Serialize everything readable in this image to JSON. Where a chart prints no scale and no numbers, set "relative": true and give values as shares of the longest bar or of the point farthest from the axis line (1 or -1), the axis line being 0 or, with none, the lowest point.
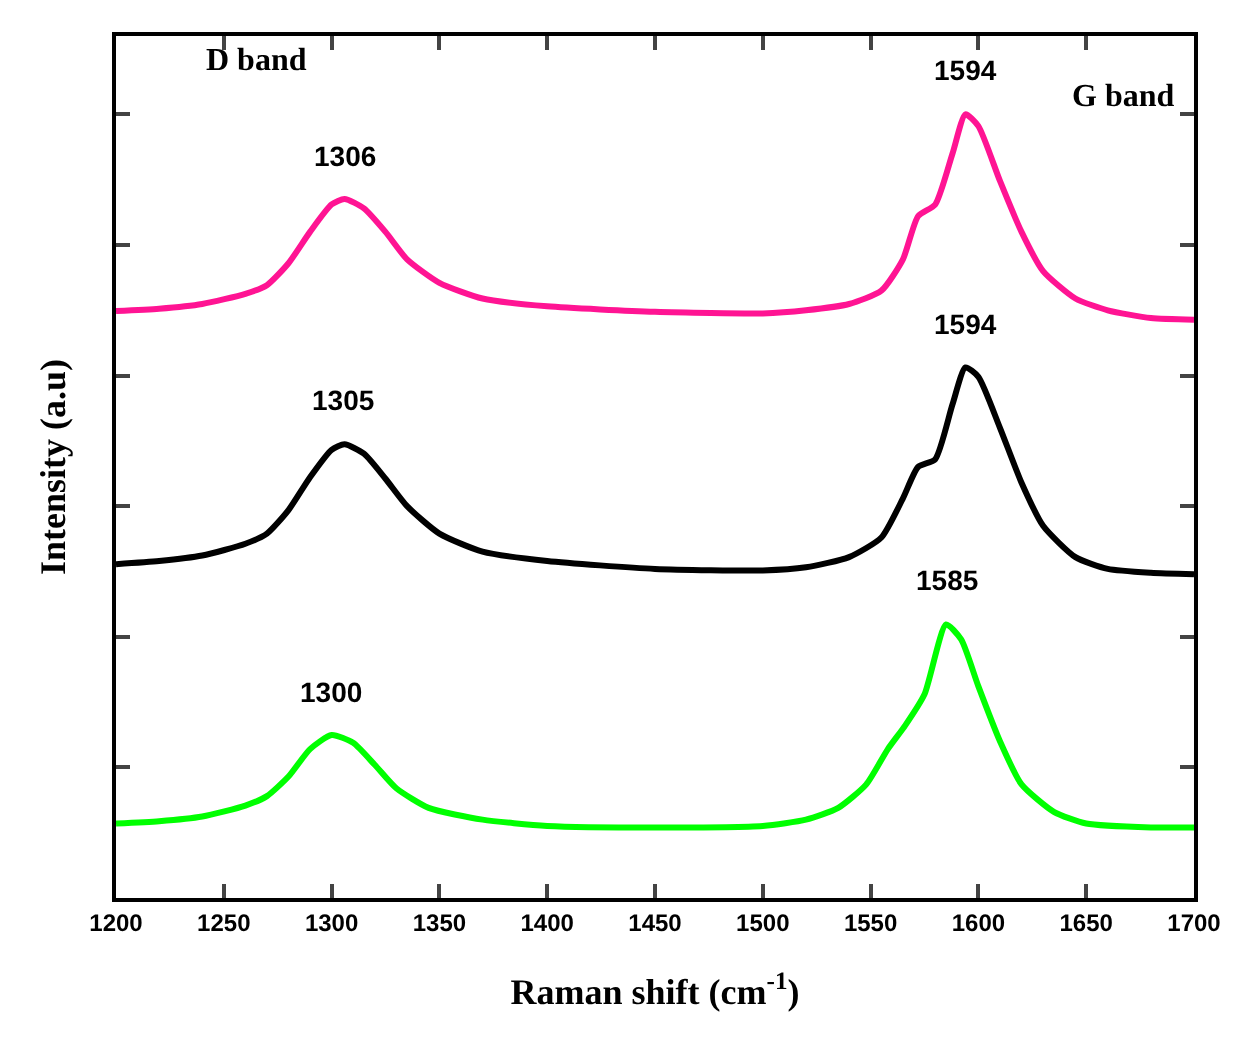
{
  "chart_data": {
    "type": "line",
    "relative": true,
    "xlabel": "Raman shift (cm$^{-1}$)",
    "ylabel": "Intensity (a.u)",
    "xlim": [
      1200,
      1700
    ],
    "xticks": [
      1200,
      1250,
      1300,
      1350,
      1400,
      1450,
      1500,
      1550,
      1600,
      1650,
      1700
    ],
    "grid": false,
    "tick_labels": "x",
    "series": [
      {
        "color": "#ff1493",
        "x": [
          1200,
          1220,
          1240,
          1260,
          1270,
          1280,
          1290,
          1300,
          1306,
          1315,
          1325,
          1335,
          1350,
          1370,
          1400,
          1450,
          1500,
          1520,
          1540,
          1555,
          1565,
          1572,
          1580,
          1588,
          1594,
          1600,
          1610,
          1620,
          1630,
          1645,
          1660,
          1680,
          1700
        ],
        "values": [
          0.749,
          0.752,
          0.758,
          0.771,
          0.782,
          0.81,
          0.85,
          0.885,
          0.892,
          0.88,
          0.85,
          0.815,
          0.785,
          0.765,
          0.755,
          0.748,
          0.746,
          0.75,
          0.758,
          0.775,
          0.815,
          0.87,
          0.885,
          0.95,
          1.0,
          0.985,
          0.915,
          0.85,
          0.8,
          0.765,
          0.75,
          0.74,
          0.738
        ]
      },
      {
        "color": "#000000",
        "x": [
          1200,
          1220,
          1240,
          1260,
          1270,
          1280,
          1290,
          1300,
          1306,
          1315,
          1325,
          1335,
          1350,
          1370,
          1400,
          1450,
          1500,
          1520,
          1540,
          1555,
          1565,
          1572,
          1580,
          1588,
          1594,
          1600,
          1610,
          1620,
          1630,
          1645,
          1660,
          1680,
          1700
        ],
        "values": [
          0.426,
          0.43,
          0.437,
          0.452,
          0.465,
          0.495,
          0.537,
          0.572,
          0.579,
          0.567,
          0.535,
          0.5,
          0.465,
          0.442,
          0.43,
          0.42,
          0.418,
          0.422,
          0.435,
          0.46,
          0.51,
          0.55,
          0.56,
          0.63,
          0.677,
          0.665,
          0.6,
          0.53,
          0.475,
          0.435,
          0.42,
          0.415,
          0.413
        ]
      },
      {
        "color": "#00ff00",
        "x": [
          1200,
          1220,
          1240,
          1260,
          1270,
          1280,
          1290,
          1300,
          1310,
          1320,
          1330,
          1345,
          1370,
          1400,
          1450,
          1500,
          1520,
          1535,
          1548,
          1558,
          1566,
          1575,
          1585,
          1592,
          1600,
          1610,
          1620,
          1635,
          1650,
          1680,
          1700
        ],
        "values": [
          0.095,
          0.098,
          0.104,
          0.118,
          0.13,
          0.155,
          0.19,
          0.208,
          0.198,
          0.17,
          0.14,
          0.115,
          0.1,
          0.092,
          0.09,
          0.092,
          0.1,
          0.115,
          0.145,
          0.19,
          0.22,
          0.26,
          0.349,
          0.33,
          0.27,
          0.2,
          0.145,
          0.11,
          0.095,
          0.09,
          0.09
        ]
      }
    ],
    "annotations": [
      "D band",
      "G band",
      {
        "text": "1306",
        "x": 1306,
        "y": 0.892
      },
      {
        "text": "1594",
        "x": 1594,
        "y": 1.0
      },
      {
        "text": "1305",
        "x": 1305,
        "y": 0.579
      },
      {
        "text": "1594",
        "x": 1594,
        "y": 0.677
      },
      {
        "text": "1300",
        "x": 1300,
        "y": 0.208
      },
      {
        "text": "1585",
        "x": 1585,
        "y": 0.349
      }
    ]
  }
}
